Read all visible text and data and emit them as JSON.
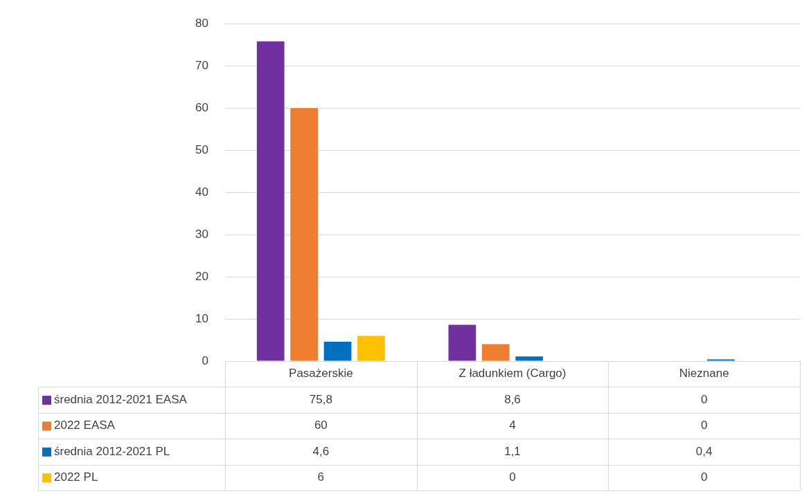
{
  "chart_data": {
    "type": "bar",
    "categories": [
      "Pasażerskie",
      "Z ładunkiem (Cargo)",
      "Nieznane"
    ],
    "series": [
      {
        "name": "średnia 2012-2021 EASA",
        "color": "#7030a0",
        "values": [
          75.8,
          8.6,
          0
        ],
        "value_labels": [
          "75,8",
          "8,6",
          "0"
        ]
      },
      {
        "name": "2022 EASA",
        "color": "#ed7d31",
        "values": [
          60,
          4,
          0
        ],
        "value_labels": [
          "60",
          "4",
          "0"
        ]
      },
      {
        "name": "średnia 2012-2021 PL",
        "color": "#0070c0",
        "values": [
          4.6,
          1.1,
          0.4
        ],
        "value_labels": [
          "4,6",
          "1,1",
          "0,4"
        ]
      },
      {
        "name": "2022 PL",
        "color": "#ffc000",
        "values": [
          6,
          0,
          0
        ],
        "value_labels": [
          "6",
          "0",
          "0"
        ]
      }
    ],
    "ylim": [
      0,
      80
    ],
    "yticks": [
      0,
      10,
      20,
      30,
      40,
      50,
      60,
      70,
      80
    ],
    "grid": "y",
    "legend": "bottom"
  }
}
